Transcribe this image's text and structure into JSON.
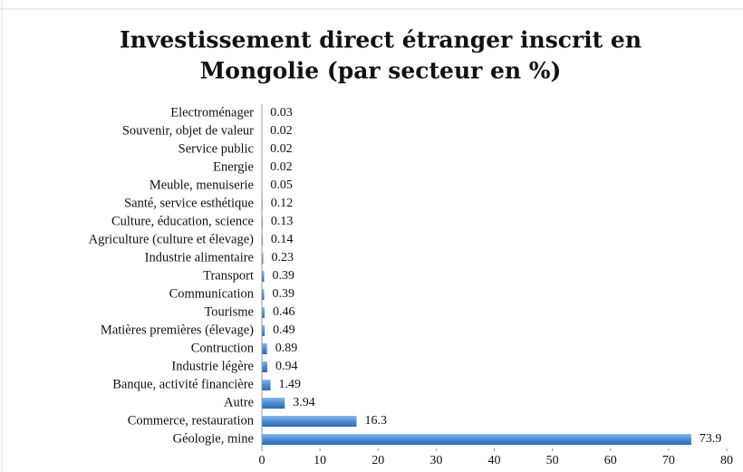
{
  "chart_data": {
    "type": "barh",
    "title": [
      "Investissement direct étranger inscrit en",
      "Mongolie (par secteur en %)"
    ],
    "categories": [
      "Electroménager",
      "Souvenir, objet de valeur",
      "Service public",
      "Energie",
      "Meuble, menuiserie",
      "Santé, service esthétique",
      "Culture, éducation, science",
      "Agriculture (culture et élevage)",
      "Industrie alimentaire",
      "Transport",
      "Communication",
      "Tourisme",
      "Matières premières (élevage)",
      "Contruction",
      "Industrie légère",
      "Banque, activité financière",
      "Autre",
      "Commerce, restauration",
      "Géologie, mine"
    ],
    "values": [
      0.03,
      0.02,
      0.02,
      0.02,
      0.05,
      0.12,
      0.13,
      0.14,
      0.23,
      0.39,
      0.39,
      0.46,
      0.49,
      0.89,
      0.94,
      1.49,
      3.94,
      16.3,
      73.9
    ],
    "color": "#4a8bd4",
    "xlim": [
      0,
      80
    ],
    "xticks": [
      0,
      10,
      20,
      30,
      40,
      50,
      60,
      70,
      80
    ],
    "grid": false
  }
}
